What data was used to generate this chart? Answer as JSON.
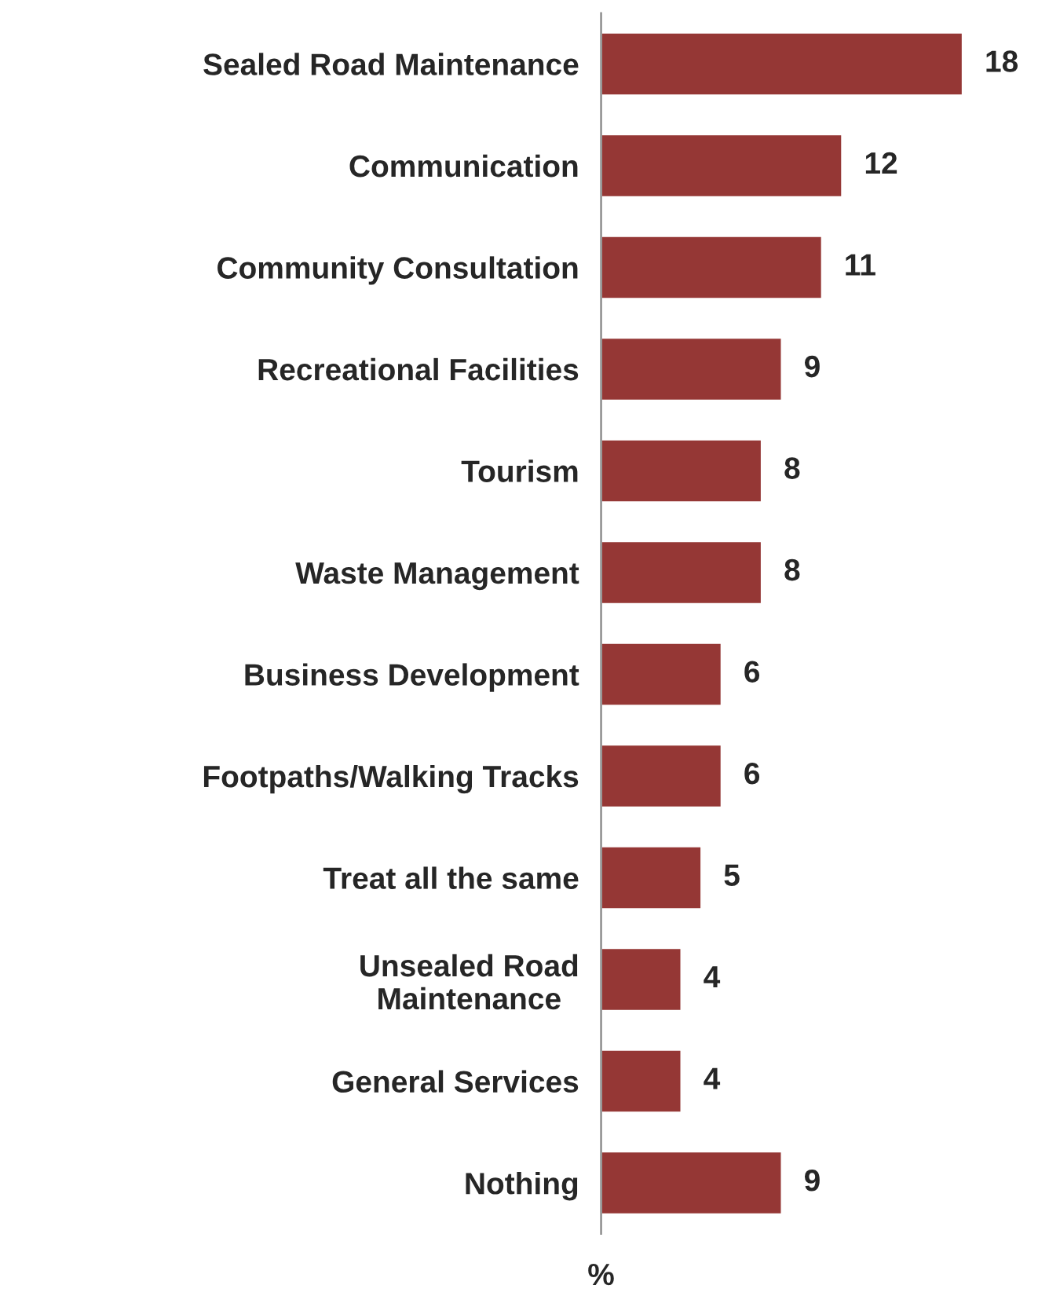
{
  "chart_data": {
    "type": "bar",
    "orientation": "horizontal",
    "xlabel": "%",
    "categories": [
      "Sealed Road Maintenance",
      "Communication",
      "Community Consultation",
      "Recreational Facilities",
      "Tourism",
      "Waste Management",
      "Business Development",
      "Footpaths/Walking Tracks",
      "Treat all the same",
      "Unsealed Road\nMaintenance",
      "General Services",
      "Nothing"
    ],
    "values": [
      18,
      12,
      11,
      9,
      8,
      8,
      6,
      6,
      5,
      4,
      4,
      9
    ],
    "color": "#953735",
    "data_labels": true,
    "grid": false,
    "tick_labels": "y"
  }
}
